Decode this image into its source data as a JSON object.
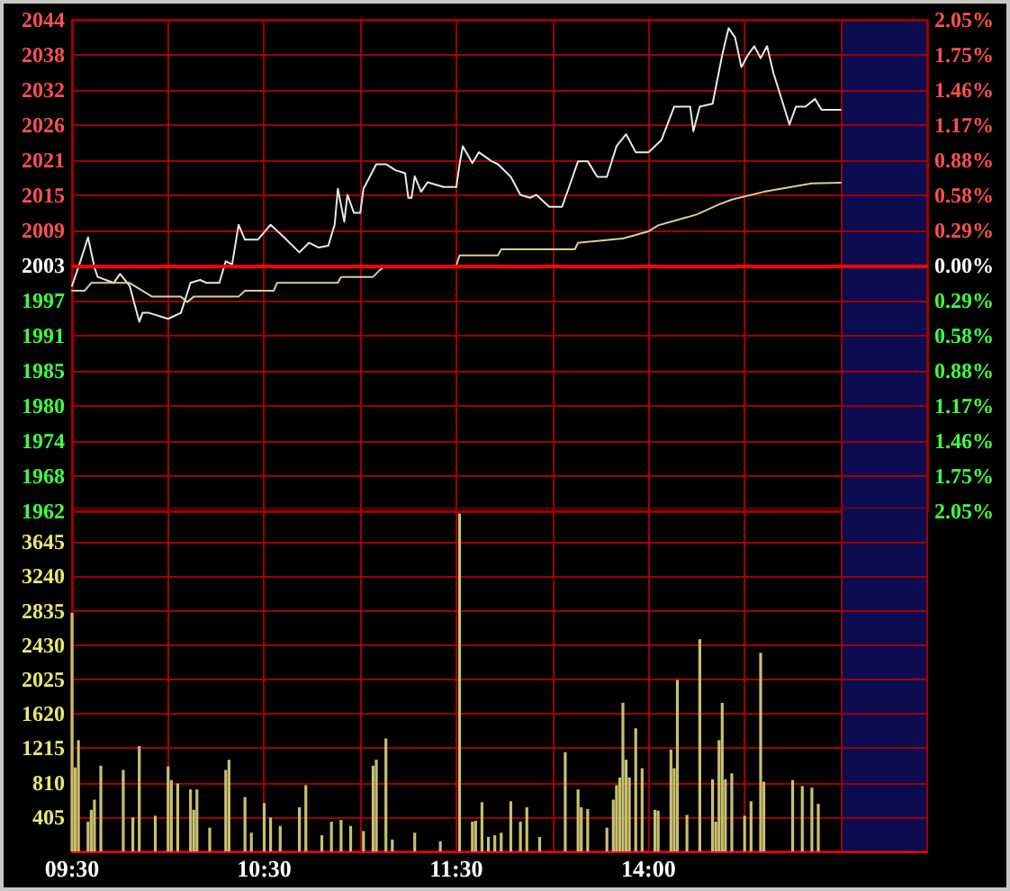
{
  "chart_data": [
    {
      "type": "line",
      "categories": [
        null,
        null,
        null,
        null,
        null,
        null,
        null,
        null,
        null,
        null,
        null,
        null,
        null,
        null,
        null,
        null,
        null,
        null,
        null,
        null,
        null,
        null,
        null,
        null,
        null,
        null,
        null,
        null,
        null,
        null,
        null,
        null,
        null,
        null,
        null,
        null,
        null,
        null,
        null,
        null,
        null,
        null,
        null,
        null,
        null,
        null,
        null,
        null,
        null,
        null,
        null,
        null,
        null,
        null,
        null,
        null,
        null,
        null,
        null,
        null,
        null,
        null,
        null,
        null,
        null,
        null,
        null,
        null,
        null,
        null,
        null,
        null,
        null,
        null,
        null,
        null,
        null,
        null,
        null,
        null,
        null,
        null,
        null,
        null,
        null,
        null,
        null,
        null,
        null,
        null,
        null,
        null,
        null,
        null,
        null,
        null,
        null,
        null,
        null,
        null,
        null,
        null,
        null,
        null,
        null,
        null,
        null,
        null,
        null,
        null,
        null,
        null,
        null,
        null,
        null,
        null,
        null,
        null,
        null,
        null,
        null,
        null,
        null,
        null,
        null,
        null,
        null,
        null,
        null,
        null,
        null,
        null,
        null,
        null,
        null,
        null,
        null,
        null,
        null,
        null,
        null,
        null,
        null,
        null,
        null,
        null,
        null,
        null,
        null,
        null,
        null,
        null,
        null,
        null,
        null,
        null,
        null,
        null,
        null,
        null,
        null,
        null,
        null,
        null,
        null,
        null,
        null,
        null,
        null,
        null,
        null,
        null,
        null,
        null,
        null,
        null,
        null,
        null,
        null,
        null,
        null,
        null,
        null,
        null,
        null,
        null,
        null,
        null,
        null,
        null,
        null,
        null,
        null,
        null,
        null,
        null,
        null,
        null,
        null,
        null,
        null,
        null,
        null,
        null,
        null,
        null,
        null,
        null,
        null,
        null,
        null,
        null,
        null,
        null,
        null,
        null,
        null,
        null,
        null,
        null,
        null,
        null,
        null,
        null,
        null,
        null,
        null,
        null,
        null,
        null,
        null,
        null,
        null,
        null,
        null,
        null,
        null,
        null,
        null,
        null,
        null,
        null,
        null,
        null,
        null,
        null,
        null,
        null,
        null,
        null,
        null,
        null,
        null,
        null,
        null,
        null,
        null,
        null,
        null,
        null,
        null,
        null,
        null,
        null,
        null,
        null,
        null,
        null
      ],
      "ylim": [
        1962,
        2044
      ],
      "yticks": [
        {
          "value": 1962,
          "label": "1962"
        },
        {
          "value": 1967.857,
          "label": "1968"
        },
        {
          "value": 1973.714,
          "label": "1974"
        },
        {
          "value": 1979.571,
          "label": "1980"
        },
        {
          "value": 1985.429,
          "label": "1985"
        },
        {
          "value": 1991.286,
          "label": "1991"
        },
        {
          "value": 1997.143,
          "label": "1997"
        },
        {
          "value": 2003,
          "label": "2003"
        },
        {
          "value": 2008.857,
          "label": "2009"
        },
        {
          "value": 2014.714,
          "label": "2015"
        },
        {
          "value": 2020.571,
          "label": "2021"
        },
        {
          "value": 2026.429,
          "label": "2026"
        },
        {
          "value": 2032.286,
          "label": "2032"
        },
        {
          "value": 2038.143,
          "label": "2038"
        },
        {
          "value": 2044,
          "label": "2044"
        }
      ],
      "y2lim": [
        -2.05,
        2.05
      ],
      "y2ticks": [
        {
          "value": -2.047,
          "label": "2.05%"
        },
        {
          "value": -1.755,
          "label": "1.75%"
        },
        {
          "value": -1.462,
          "label": "1.46%"
        },
        {
          "value": -1.17,
          "label": "1.17%"
        },
        {
          "value": -0.877,
          "label": "0.88%"
        },
        {
          "value": -0.585,
          "label": "0.58%"
        },
        {
          "value": -0.292,
          "label": "0.29%"
        },
        {
          "value": 0,
          "label": "0.00%"
        },
        {
          "value": 0.292,
          "label": "0.29%"
        },
        {
          "value": 0.585,
          "label": "0.58%"
        },
        {
          "value": 0.877,
          "label": "0.88%"
        },
        {
          "value": 1.17,
          "label": "1.17%"
        },
        {
          "value": 1.462,
          "label": "1.46%"
        },
        {
          "value": 1.755,
          "label": "1.75%"
        },
        {
          "value": 2.047,
          "label": "2.05%"
        }
      ],
      "tick_labels": "y",
      "grid": true,
      "line_style": "solid",
      "ref_lines": [
        {
          "axis": "y",
          "value": 2003,
          "label": null,
          "color": "#ff0000"
        }
      ],
      "series": [
        {
          "color": "#e8e8e8",
          "values": [
            1999.6,
            null,
            2002.7,
            null,
            null,
            2007.7,
            null,
            2002.7,
            2001.1,
            null,
            null,
            null,
            null,
            2000.1,
            null,
            2001.6,
            null,
            null,
            1999.6,
            null,
            null,
            1993.6,
            1995.1,
            null,
            1995.1,
            null,
            null,
            null,
            null,
            null,
            1994.1,
            null,
            null,
            null,
            1995.1,
            null,
            null,
            2000.1,
            null,
            null,
            2000.6,
            null,
            2000.1,
            null,
            null,
            null,
            2000.1,
            null,
            2003.7,
            null,
            2003.2,
            null,
            2009.8,
            null,
            2007.3,
            null,
            null,
            null,
            2007.3,
            null,
            null,
            null,
            2009.8,
            null,
            null,
            null,
            2007.8,
            null,
            null,
            null,
            null,
            2005.2,
            null,
            null,
            2006.8,
            null,
            null,
            2006,
            null,
            null,
            2006.3,
            null,
            2009.8,
            2015.8,
            null,
            2010.3,
            2014.8,
            null,
            2011.8,
            null,
            2011.8,
            2015.8,
            null,
            null,
            null,
            2019.9,
            null,
            null,
            2019.9,
            null,
            null,
            2018.9,
            null,
            null,
            2018.4,
            2014.3,
            2014.3,
            2017.9,
            null,
            2015.3,
            null,
            2016.9,
            null,
            null,
            null,
            null,
            2016.1,
            null,
            null,
            null,
            2016.1,
            2019.9,
            2022.9,
            null,
            null,
            2020.1,
            null,
            2021.9,
            null,
            null,
            null,
            2020.4,
            null,
            2019.9,
            null,
            null,
            null,
            2017.8,
            null,
            null,
            2014.8,
            null,
            null,
            2014.3,
            null,
            2014.8,
            null,
            null,
            null,
            2012.8,
            null,
            null,
            null,
            2012.8,
            null,
            2015.8,
            null,
            null,
            2020.4,
            null,
            null,
            2020.4,
            null,
            null,
            2017.8,
            null,
            null,
            2017.8,
            null,
            null,
            2022.9,
            null,
            null,
            2024.9,
            null,
            null,
            2021.9,
            null,
            null,
            null,
            2021.9,
            null,
            null,
            null,
            2023.9,
            null,
            null,
            null,
            2029.5,
            null,
            null,
            null,
            null,
            2029.5,
            2025.4,
            null,
            2029.5,
            null,
            null,
            null,
            2030,
            null,
            null,
            2038.1,
            null,
            2042.6,
            null,
            2041.1,
            null,
            2036.1,
            null,
            2038.1,
            null,
            2039.6,
            null,
            2037.6,
            null,
            2039.6,
            null,
            2035.1,
            null,
            null,
            2030,
            null,
            2026.5,
            null,
            2029.5,
            null,
            null,
            2029.5,
            null,
            null,
            2030.8,
            null,
            2029,
            null,
            null,
            null,
            null,
            null,
            2029,
            null,
            null,
            null,
            null,
            null,
            null,
            null,
            null,
            null,
            null,
            null,
            null,
            null,
            null,
            null,
            null,
            null,
            null,
            null,
            null,
            null,
            null,
            null,
            null,
            null,
            null,
            null
          ]
        },
        {
          "color": "#d8d090",
          "values": [
            1998.8,
            null,
            null,
            null,
            1998.8,
            null,
            2000.1,
            null,
            null,
            null,
            null,
            null,
            null,
            null,
            null,
            null,
            null,
            null,
            2000.1,
            null,
            null,
            null,
            null,
            null,
            null,
            1997.8,
            null,
            null,
            null,
            null,
            null,
            null,
            null,
            null,
            1997.8,
            null,
            1996.9,
            null,
            1997.8,
            null,
            null,
            null,
            null,
            null,
            null,
            null,
            null,
            null,
            null,
            null,
            null,
            null,
            1997.8,
            null,
            1998.8,
            null,
            null,
            null,
            null,
            null,
            null,
            null,
            null,
            1998.8,
            2000.1,
            null,
            null,
            null,
            null,
            null,
            null,
            null,
            null,
            null,
            null,
            null,
            null,
            null,
            null,
            null,
            null,
            null,
            null,
            2000.1,
            2001.1,
            null,
            null,
            null,
            null,
            null,
            null,
            null,
            null,
            null,
            2001.1,
            null,
            2002.2,
            null,
            2003,
            null,
            null,
            null,
            null,
            null,
            null,
            null,
            null,
            null,
            null,
            null,
            null,
            null,
            null,
            null,
            null,
            null,
            null,
            null,
            null,
            null,
            2003,
            2004.7,
            null,
            null,
            null,
            null,
            null,
            null,
            null,
            null,
            null,
            null,
            null,
            2004.7,
            2005.7,
            null,
            null,
            null,
            null,
            null,
            null,
            null,
            null,
            null,
            null,
            null,
            null,
            null,
            null,
            null,
            null,
            null,
            null,
            null,
            null,
            null,
            null,
            2005.7,
            2006.8,
            null,
            null,
            null,
            null,
            null,
            null,
            null,
            null,
            null,
            null,
            null,
            null,
            null,
            2007.5,
            null,
            null,
            null,
            null,
            null,
            null,
            null,
            2008.7,
            null,
            null,
            2009.7,
            null,
            null,
            null,
            null,
            null,
            null,
            null,
            null,
            null,
            null,
            null,
            2011.5,
            null,
            null,
            null,
            null,
            null,
            null,
            2013.2,
            null,
            null,
            null,
            2014,
            null,
            null,
            null,
            null,
            null,
            null,
            null,
            null,
            null,
            2015.3,
            null,
            null,
            null,
            null,
            null,
            null,
            null,
            null,
            null,
            null,
            null,
            null,
            null,
            null,
            2016.7,
            null,
            null,
            null,
            null,
            null,
            null,
            null,
            null,
            2016.8,
            null,
            null,
            null,
            null,
            null,
            null,
            null,
            null,
            null,
            null,
            null,
            null,
            null,
            null,
            null,
            null,
            null,
            null,
            null,
            null,
            null,
            null,
            null,
            null,
            null,
            null,
            null
          ]
        }
      ]
    },
    {
      "type": "bar",
      "categories": [
        "09:30",
        null,
        null,
        null,
        null,
        null,
        null,
        null,
        null,
        null,
        null,
        null,
        null,
        null,
        null,
        null,
        null,
        null,
        null,
        null,
        null,
        null,
        null,
        null,
        null,
        null,
        null,
        null,
        null,
        null,
        null,
        null,
        null,
        null,
        null,
        null,
        null,
        null,
        null,
        null,
        null,
        null,
        null,
        null,
        null,
        null,
        null,
        null,
        null,
        null,
        null,
        null,
        null,
        null,
        null,
        null,
        null,
        null,
        null,
        null,
        "10:30",
        null,
        null,
        null,
        null,
        null,
        null,
        null,
        null,
        null,
        null,
        null,
        null,
        null,
        null,
        null,
        null,
        null,
        null,
        null,
        null,
        null,
        null,
        null,
        null,
        null,
        null,
        null,
        null,
        null,
        null,
        null,
        null,
        null,
        null,
        null,
        null,
        null,
        null,
        null,
        null,
        null,
        null,
        null,
        null,
        null,
        null,
        null,
        null,
        null,
        null,
        null,
        null,
        null,
        null,
        null,
        null,
        null,
        null,
        null,
        "11:30",
        null,
        null,
        null,
        null,
        null,
        null,
        null,
        null,
        null,
        null,
        null,
        null,
        null,
        null,
        null,
        null,
        null,
        null,
        null,
        null,
        null,
        null,
        null,
        null,
        null,
        null,
        null,
        null,
        null,
        null,
        null,
        null,
        null,
        null,
        null,
        null,
        null,
        null,
        null,
        null,
        null,
        null,
        null,
        null,
        null,
        null,
        null,
        null,
        null,
        null,
        null,
        null,
        null,
        null,
        null,
        null,
        null,
        null,
        null,
        "14:00",
        null,
        null,
        null,
        null,
        null,
        null,
        null,
        null,
        null,
        null,
        null,
        null,
        null,
        null,
        null,
        null,
        null,
        null,
        null,
        null,
        null,
        null,
        null,
        null,
        null,
        null,
        null,
        null,
        null,
        null,
        null,
        null,
        null,
        null,
        null,
        null,
        null,
        null,
        null,
        null,
        null,
        null,
        null,
        null,
        null,
        null,
        null,
        null,
        null,
        null,
        null,
        null,
        null,
        null,
        null,
        null,
        null,
        null,
        null,
        null,
        null,
        null,
        null,
        null,
        null,
        null,
        null,
        null,
        null,
        null,
        null,
        null,
        null,
        null,
        null,
        null,
        null,
        null,
        null,
        null,
        null,
        null,
        null,
        null,
        null,
        null,
        null
      ],
      "ylim": [
        0,
        4050
      ],
      "yticks": [
        405,
        810,
        1215,
        1620,
        2025,
        2430,
        2835,
        3240,
        3645
      ],
      "grid": true,
      "series": [
        {
          "color": "#c8c070",
          "values": [
            2810,
            990,
            1310,
            null,
            null,
            350,
            490,
            610,
            null,
            1010,
            null,
            null,
            null,
            null,
            null,
            null,
            960,
            null,
            null,
            400,
            null,
            1240,
            null,
            null,
            null,
            null,
            420,
            null,
            null,
            null,
            1000,
            840,
            null,
            800,
            null,
            null,
            null,
            730,
            490,
            730,
            null,
            null,
            null,
            280,
            null,
            null,
            null,
            null,
            960,
            1080,
            null,
            null,
            null,
            null,
            640,
            null,
            220,
            null,
            null,
            null,
            570,
            null,
            400,
            null,
            null,
            300,
            null,
            null,
            null,
            null,
            null,
            520,
            null,
            780,
            null,
            null,
            null,
            null,
            190,
            null,
            null,
            350,
            null,
            null,
            370,
            null,
            null,
            300,
            null,
            null,
            null,
            240,
            null,
            null,
            1010,
            1080,
            null,
            null,
            1330,
            null,
            140,
            null,
            null,
            null,
            null,
            null,
            null,
            220,
            null,
            null,
            null,
            null,
            null,
            null,
            null,
            120,
            null,
            null,
            null,
            null,
            null,
            3980,
            null,
            null,
            null,
            350,
            360,
            null,
            580,
            null,
            170,
            null,
            190,
            null,
            220,
            null,
            null,
            590,
            null,
            null,
            350,
            null,
            520,
            null,
            null,
            null,
            170,
            null,
            null,
            null,
            null,
            null,
            null,
            null,
            1170,
            null,
            null,
            null,
            730,
            520,
            null,
            500,
            null,
            null,
            null,
            null,
            null,
            280,
            null,
            610,
            780,
            870,
            1750,
            1080,
            870,
            null,
            1450,
            null,
            980,
            null,
            null,
            null,
            490,
            480,
            null,
            null,
            null,
            1200,
            980,
            2020,
            null,
            null,
            430,
            null,
            null,
            null,
            2500,
            null,
            null,
            null,
            850,
            350,
            1310,
            1750,
            850,
            null,
            920,
            null,
            null,
            null,
            420,
            null,
            590,
            null,
            null,
            2340,
            820,
            null,
            null,
            null,
            null,
            null,
            null,
            null,
            null,
            840,
            null,
            null,
            770,
            null,
            null,
            750,
            null,
            560,
            null,
            null,
            null,
            null,
            null,
            null,
            null,
            null,
            null,
            null,
            null,
            null,
            null,
            null,
            null,
            null,
            null,
            null,
            null,
            null,
            null,
            null,
            null,
            null,
            null,
            null,
            null,
            null,
            null,
            null,
            null,
            null,
            null,
            null
          ]
        }
      ]
    }
  ]
}
